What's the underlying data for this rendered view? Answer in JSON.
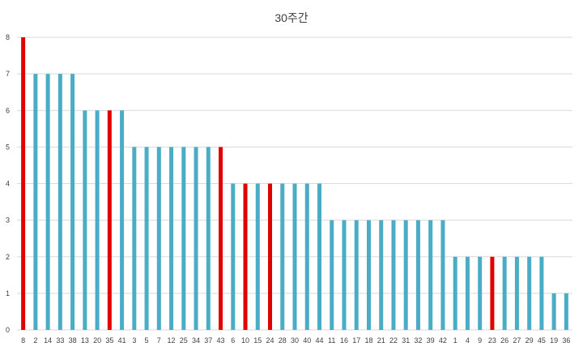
{
  "chart_data": {
    "type": "bar",
    "title": "30주간",
    "xlabel": "",
    "ylabel": "",
    "ylim": [
      0,
      8
    ],
    "yticks": [
      0,
      1,
      2,
      3,
      4,
      5,
      6,
      7,
      8
    ],
    "grid": true,
    "legend": "none",
    "categories": [
      "8",
      "2",
      "14",
      "33",
      "38",
      "13",
      "20",
      "35",
      "41",
      "3",
      "5",
      "7",
      "12",
      "25",
      "34",
      "37",
      "43",
      "6",
      "10",
      "15",
      "24",
      "28",
      "30",
      "40",
      "44",
      "11",
      "16",
      "17",
      "18",
      "21",
      "22",
      "31",
      "32",
      "39",
      "42",
      "1",
      "4",
      "9",
      "23",
      "26",
      "27",
      "29",
      "45",
      "19",
      "36"
    ],
    "values": [
      8,
      7,
      7,
      7,
      7,
      6,
      6,
      6,
      6,
      5,
      5,
      5,
      5,
      5,
      5,
      5,
      5,
      4,
      4,
      4,
      4,
      4,
      4,
      4,
      4,
      3,
      3,
      3,
      3,
      3,
      3,
      3,
      3,
      3,
      3,
      2,
      2,
      2,
      2,
      2,
      2,
      2,
      2,
      1,
      1
    ],
    "highlighted": [
      "8",
      "35",
      "43",
      "10",
      "24",
      "23"
    ],
    "colors": {
      "default": "#4bacc6",
      "highlight": "#e00000",
      "grid": "#d9d9d9"
    }
  }
}
